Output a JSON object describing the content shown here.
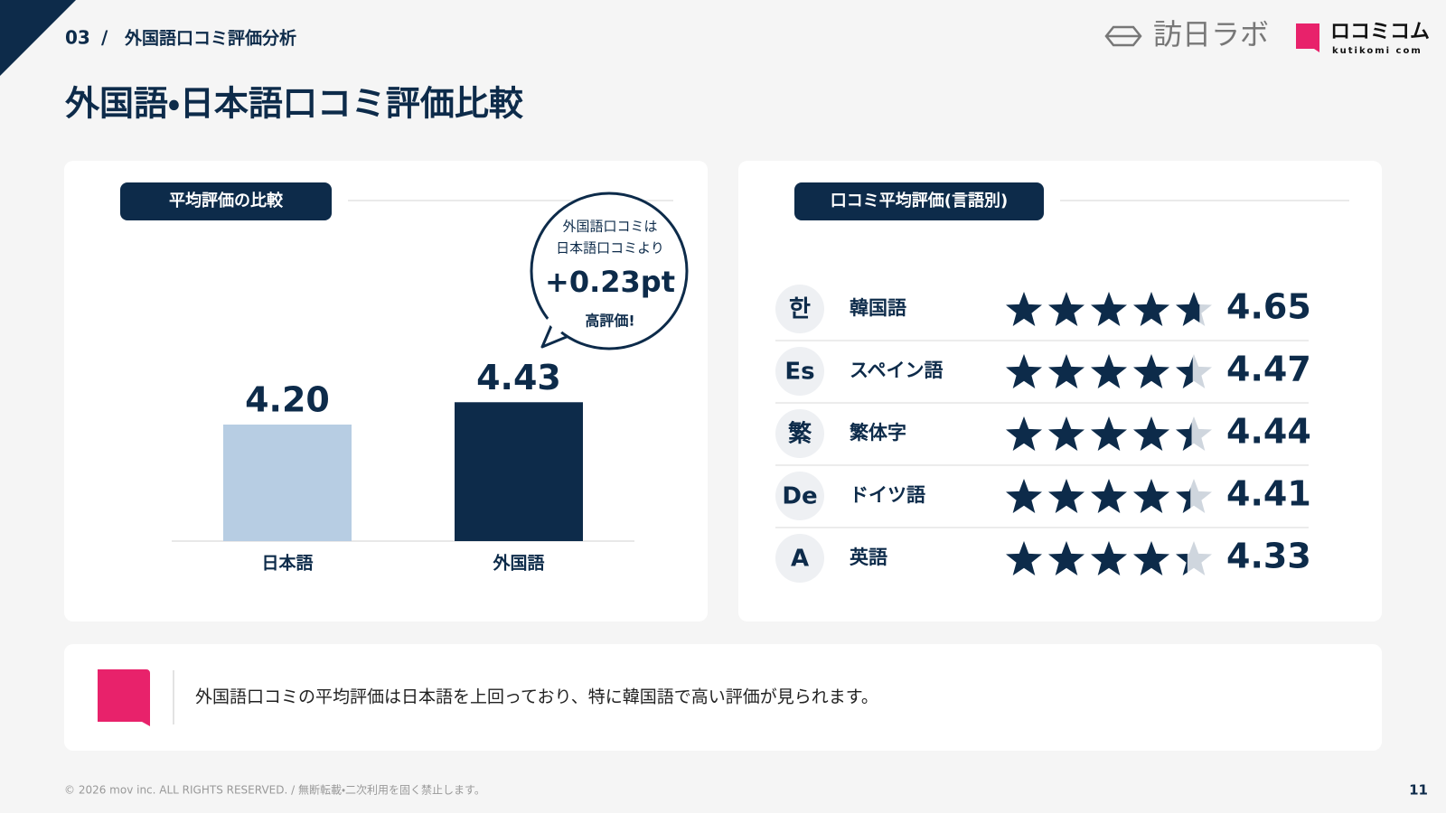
{
  "header": {
    "section": "03",
    "separator": "/",
    "section_title": "外国語口コミ評価分析",
    "title": "外国語・日本語口コミ評価比較"
  },
  "logos": {
    "brand_a": "訪日ラボ",
    "brand_b": "ロコミコム",
    "brand_b_sub": "kutikomi com"
  },
  "chart_data": {
    "type": "bar",
    "title": "平均評価の比較",
    "categories": [
      "日本語",
      "外国語"
    ],
    "values": [
      4.2,
      4.43
    ],
    "value_labels": [
      "4.20",
      "4.43"
    ],
    "colors": [
      "#b7cde3",
      "#0d2b4a"
    ],
    "ylim": [
      3,
      5
    ],
    "annotations": [
      "外国語口コミは",
      "日本語口コミより",
      "+0.23pt",
      "高評価!"
    ]
  },
  "ratings": {
    "title": "口コミ平均評価(言語別)",
    "star_color": "#0d2b4a",
    "rows": [
      {
        "icon": "한",
        "language": "韓国語",
        "value": 4.65
      },
      {
        "icon": "Es",
        "language": "スペイン語",
        "value": 4.47
      },
      {
        "icon": "繁",
        "language": "繁体字",
        "value": 4.44
      },
      {
        "icon": "De",
        "language": "ドイツ語",
        "value": 4.41
      },
      {
        "icon": "A",
        "language": "英語",
        "value": 4.33
      }
    ]
  },
  "summary": "外国語口コミの平均評価は日本語を上回っており、特に韓国語で高い評価が見られます。",
  "footer": {
    "copyright": "© 2026 mov inc. ALL RIGHTS RESERVED. / 無断転載・二次利用を固く禁止します。",
    "page": 11
  }
}
